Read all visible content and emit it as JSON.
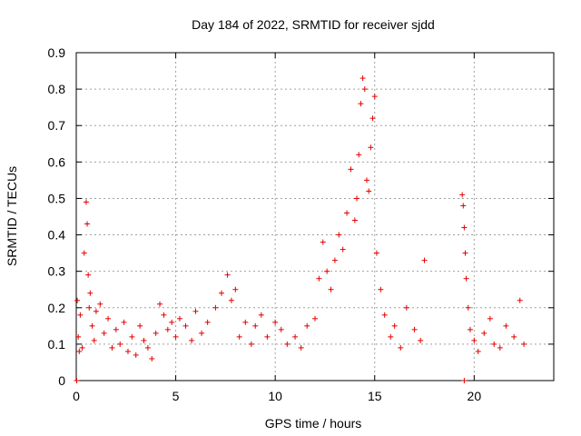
{
  "chart_data": {
    "type": "scatter",
    "title": "Day 184 of 2022, SRMTID for receiver sjdd",
    "xlabel": "GPS time / hours",
    "ylabel": "SRMTID / TECUs",
    "xlim": [
      0,
      24
    ],
    "ylim": [
      0,
      0.9
    ],
    "grid": true,
    "x_ticks": [
      0,
      5,
      10,
      15,
      20
    ],
    "x_tick_labels": [
      "0",
      "5",
      "10",
      "15",
      "20"
    ],
    "y_ticks": [
      0,
      0.1,
      0.2,
      0.3,
      0.4,
      0.5,
      0.6,
      0.7,
      0.8,
      0.9
    ],
    "y_tick_labels": [
      "0",
      "0.1",
      "0.2",
      "0.3",
      "0.4",
      "0.5",
      "0.6",
      "0.7",
      "0.8",
      "0.9"
    ],
    "marker": "+",
    "color": "#e00000",
    "series": [
      {
        "name": "SRMTID",
        "x": [
          0.05,
          0.1,
          0.15,
          0.2,
          0.3,
          0.4,
          0.5,
          0.55,
          0.6,
          0.65,
          0.7,
          0.8,
          0.9,
          1.0,
          1.2,
          1.4,
          1.6,
          1.8,
          2.0,
          2.2,
          2.4,
          2.6,
          2.8,
          3.0,
          3.2,
          3.4,
          3.6,
          3.8,
          4.0,
          4.2,
          4.4,
          4.6,
          4.8,
          5.0,
          5.2,
          5.5,
          5.8,
          6.0,
          6.3,
          6.6,
          7.0,
          7.3,
          7.6,
          7.8,
          8.0,
          8.2,
          8.5,
          8.8,
          9.0,
          9.3,
          9.6,
          10.0,
          10.3,
          10.6,
          11.0,
          11.3,
          11.6,
          12.0,
          12.2,
          12.4,
          12.6,
          12.8,
          13.0,
          13.2,
          13.4,
          13.6,
          13.8,
          14.0,
          14.1,
          14.2,
          14.3,
          14.4,
          14.5,
          14.6,
          14.7,
          14.8,
          14.9,
          15.0,
          15.1,
          15.3,
          15.5,
          15.8,
          16.0,
          16.3,
          16.6,
          17.0,
          17.3,
          17.5,
          0.02,
          19.5,
          19.4,
          19.45,
          19.5,
          19.55,
          19.6,
          19.7,
          19.8,
          20.0,
          20.2,
          20.5,
          20.8,
          21.0,
          21.3,
          21.6,
          22.0,
          22.3,
          22.5
        ],
        "y": [
          0.22,
          0.12,
          0.08,
          0.18,
          0.09,
          0.35,
          0.49,
          0.43,
          0.29,
          0.2,
          0.24,
          0.15,
          0.11,
          0.19,
          0.21,
          0.13,
          0.17,
          0.09,
          0.14,
          0.1,
          0.16,
          0.08,
          0.12,
          0.07,
          0.15,
          0.11,
          0.09,
          0.06,
          0.13,
          0.21,
          0.18,
          0.14,
          0.16,
          0.12,
          0.17,
          0.15,
          0.11,
          0.19,
          0.13,
          0.16,
          0.2,
          0.24,
          0.29,
          0.22,
          0.25,
          0.12,
          0.16,
          0.1,
          0.15,
          0.18,
          0.12,
          0.16,
          0.14,
          0.1,
          0.12,
          0.09,
          0.15,
          0.17,
          0.28,
          0.38,
          0.3,
          0.25,
          0.33,
          0.4,
          0.36,
          0.46,
          0.58,
          0.44,
          0.5,
          0.62,
          0.76,
          0.83,
          0.8,
          0.55,
          0.52,
          0.64,
          0.72,
          0.78,
          0.35,
          0.25,
          0.18,
          0.12,
          0.15,
          0.09,
          0.2,
          0.14,
          0.11,
          0.33,
          0.0,
          0.0,
          0.51,
          0.48,
          0.42,
          0.35,
          0.28,
          0.2,
          0.14,
          0.11,
          0.08,
          0.13,
          0.17,
          0.1,
          0.09,
          0.15,
          0.12,
          0.22,
          0.1
        ]
      }
    ]
  }
}
